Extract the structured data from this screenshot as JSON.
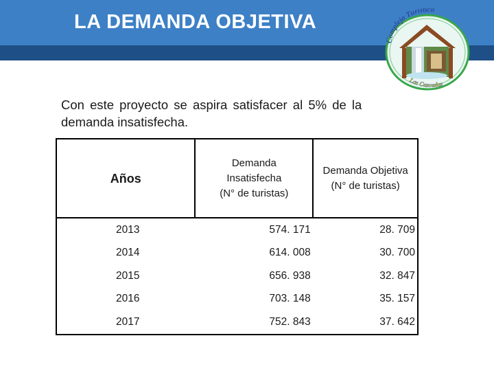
{
  "slide": {
    "title": "LA DEMANDA OBJETIVA",
    "intro_line1": "Con este proyecto se aspira  satisfacer al 5% de la",
    "intro_line2": "demanda insatisfecha."
  },
  "logo": {
    "text_top": "Complejo Turístico",
    "text_bottom": "Las Cascadas"
  },
  "table": {
    "headers": {
      "year": "Años",
      "insatisfecha": [
        "Demanda",
        "Insatisfecha",
        "(N° de turistas)"
      ],
      "objetiva": [
        "Demanda Objetiva",
        "(N° de turistas)"
      ]
    },
    "rows": [
      {
        "year": "2013",
        "insatisfecha": "574. 171",
        "objetiva": "28. 709"
      },
      {
        "year": "2014",
        "insatisfecha": "614. 008",
        "objetiva": "30. 700"
      },
      {
        "year": "2015",
        "insatisfecha": "656. 938",
        "objetiva": "32. 847"
      },
      {
        "year": "2016",
        "insatisfecha": "703. 148",
        "objetiva": "35. 157"
      },
      {
        "year": "2017",
        "insatisfecha": "752. 843",
        "objetiva": "37. 642"
      }
    ]
  },
  "colors": {
    "header_band": "#3d80c6",
    "header_stripe": "#1e4f86",
    "logo_ring": "#3aa64a",
    "logo_text": "#2a4aa0"
  }
}
